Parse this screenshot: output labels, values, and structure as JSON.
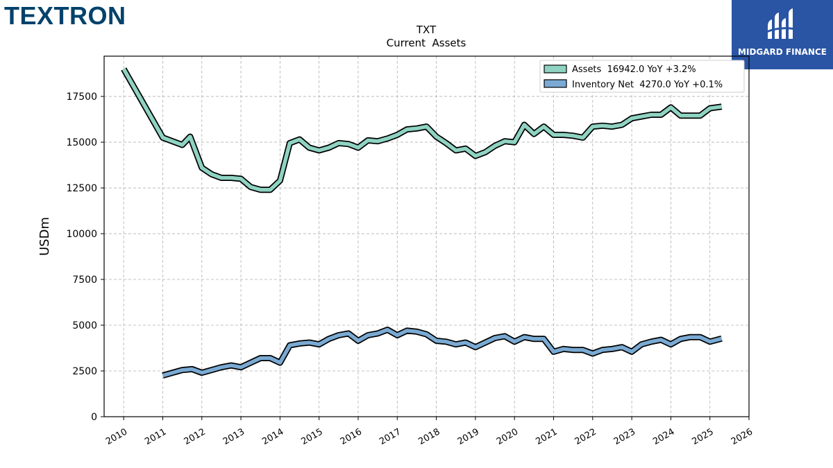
{
  "header": {
    "left_logo_text": "TEXTRON",
    "right_logo_text": "MIDGARD FINANCE",
    "right_logo_bg": "#2a55a5",
    "left_logo_color": "#00426b"
  },
  "chart_data": {
    "type": "line",
    "title": "TXT",
    "subtitle": "Current  Assets",
    "ylabel": "USDm",
    "xlabel": "",
    "xlim": [
      2009.5,
      2026.0
    ],
    "ylim": [
      0,
      19700
    ],
    "x_ticks": [
      "2010",
      "2011",
      "2012",
      "2013",
      "2014",
      "2015",
      "2016",
      "2017",
      "2018",
      "2019",
      "2020",
      "2021",
      "2022",
      "2023",
      "2024",
      "2025",
      "2026"
    ],
    "y_ticks": [
      "0",
      "2500",
      "5000",
      "7500",
      "10000",
      "12500",
      "15000",
      "17500"
    ],
    "y_tick_values": [
      0,
      2500,
      5000,
      7500,
      10000,
      12500,
      15000,
      17500
    ],
    "grid": true,
    "legend_position": "top-right",
    "series": [
      {
        "name": "Assets  16942.0 YoY +3.2%",
        "color": "#8fd3c2",
        "points": [
          [
            2010.0,
            19000
          ],
          [
            2011.0,
            15250
          ],
          [
            2011.5,
            14850
          ],
          [
            2011.7,
            15300
          ],
          [
            2012.0,
            13600
          ],
          [
            2012.25,
            13250
          ],
          [
            2012.5,
            13050
          ],
          [
            2012.75,
            13050
          ],
          [
            2013.0,
            13000
          ],
          [
            2013.25,
            12550
          ],
          [
            2013.5,
            12400
          ],
          [
            2013.75,
            12400
          ],
          [
            2014.0,
            12900
          ],
          [
            2014.25,
            14950
          ],
          [
            2014.5,
            15150
          ],
          [
            2014.75,
            14700
          ],
          [
            2015.0,
            14550
          ],
          [
            2015.25,
            14700
          ],
          [
            2015.5,
            14950
          ],
          [
            2015.75,
            14900
          ],
          [
            2016.0,
            14700
          ],
          [
            2016.25,
            15100
          ],
          [
            2016.5,
            15050
          ],
          [
            2016.75,
            15200
          ],
          [
            2017.0,
            15400
          ],
          [
            2017.25,
            15700
          ],
          [
            2017.5,
            15750
          ],
          [
            2017.75,
            15850
          ],
          [
            2018.0,
            15300
          ],
          [
            2018.25,
            14950
          ],
          [
            2018.5,
            14550
          ],
          [
            2018.75,
            14650
          ],
          [
            2019.0,
            14250
          ],
          [
            2019.25,
            14450
          ],
          [
            2019.5,
            14800
          ],
          [
            2019.75,
            15050
          ],
          [
            2020.0,
            15000
          ],
          [
            2020.25,
            15950
          ],
          [
            2020.5,
            15450
          ],
          [
            2020.75,
            15850
          ],
          [
            2021.0,
            15400
          ],
          [
            2021.25,
            15400
          ],
          [
            2021.5,
            15350
          ],
          [
            2021.75,
            15250
          ],
          [
            2022.0,
            15850
          ],
          [
            2022.25,
            15900
          ],
          [
            2022.5,
            15850
          ],
          [
            2022.75,
            15950
          ],
          [
            2023.0,
            16300
          ],
          [
            2023.25,
            16400
          ],
          [
            2023.5,
            16500
          ],
          [
            2023.75,
            16500
          ],
          [
            2024.0,
            16900
          ],
          [
            2024.25,
            16450
          ],
          [
            2024.5,
            16450
          ],
          [
            2024.75,
            16450
          ],
          [
            2025.0,
            16850
          ],
          [
            2025.3,
            16942
          ]
        ]
      },
      {
        "name": "Inventory Net  4270.0 YoY +0.1%",
        "color": "#7aaad3",
        "points": [
          [
            2011.0,
            2250
          ],
          [
            2011.25,
            2400
          ],
          [
            2011.5,
            2550
          ],
          [
            2011.75,
            2600
          ],
          [
            2012.0,
            2400
          ],
          [
            2012.25,
            2550
          ],
          [
            2012.5,
            2700
          ],
          [
            2012.75,
            2800
          ],
          [
            2013.0,
            2700
          ],
          [
            2013.25,
            2950
          ],
          [
            2013.5,
            3200
          ],
          [
            2013.75,
            3200
          ],
          [
            2014.0,
            2950
          ],
          [
            2014.25,
            3900
          ],
          [
            2014.5,
            4000
          ],
          [
            2014.75,
            4050
          ],
          [
            2015.0,
            3950
          ],
          [
            2015.25,
            4250
          ],
          [
            2015.5,
            4450
          ],
          [
            2015.75,
            4550
          ],
          [
            2016.0,
            4150
          ],
          [
            2016.25,
            4450
          ],
          [
            2016.5,
            4550
          ],
          [
            2016.75,
            4750
          ],
          [
            2017.0,
            4450
          ],
          [
            2017.25,
            4700
          ],
          [
            2017.5,
            4650
          ],
          [
            2017.75,
            4500
          ],
          [
            2018.0,
            4150
          ],
          [
            2018.25,
            4100
          ],
          [
            2018.5,
            3950
          ],
          [
            2018.75,
            4050
          ],
          [
            2019.0,
            3800
          ],
          [
            2019.25,
            4050
          ],
          [
            2019.5,
            4300
          ],
          [
            2019.75,
            4400
          ],
          [
            2020.0,
            4100
          ],
          [
            2020.25,
            4350
          ],
          [
            2020.5,
            4250
          ],
          [
            2020.75,
            4250
          ],
          [
            2021.0,
            3550
          ],
          [
            2021.25,
            3700
          ],
          [
            2021.5,
            3650
          ],
          [
            2021.75,
            3650
          ],
          [
            2022.0,
            3450
          ],
          [
            2022.25,
            3650
          ],
          [
            2022.5,
            3700
          ],
          [
            2022.75,
            3800
          ],
          [
            2023.0,
            3550
          ],
          [
            2023.25,
            3950
          ],
          [
            2023.5,
            4100
          ],
          [
            2023.75,
            4200
          ],
          [
            2024.0,
            3950
          ],
          [
            2024.25,
            4250
          ],
          [
            2024.5,
            4350
          ],
          [
            2024.75,
            4350
          ],
          [
            2025.0,
            4100
          ],
          [
            2025.3,
            4270
          ]
        ]
      }
    ]
  }
}
